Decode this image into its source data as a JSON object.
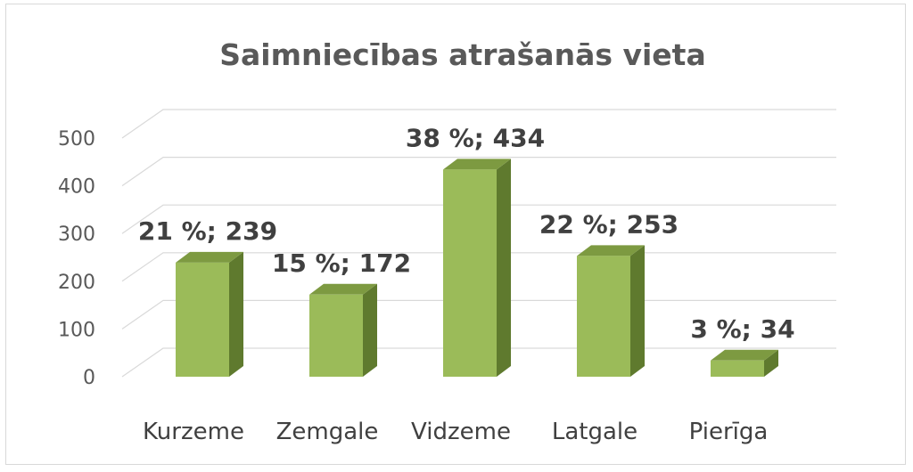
{
  "chart_data": {
    "type": "bar",
    "style": "3d-column",
    "title": "Saimniecības atrašanās vieta",
    "categories": [
      "Kurzeme",
      "Zemgale",
      "Vidzeme",
      "Latgale",
      "Pierīga"
    ],
    "values": [
      239,
      172,
      434,
      253,
      34
    ],
    "data_labels": [
      "21 %; 239",
      "15 %; 172",
      "38 %; 434",
      "22 %; 253",
      "3 %; 34"
    ],
    "yticks": [
      "0",
      "100",
      "200",
      "300",
      "400",
      "500"
    ],
    "ylim": [
      0,
      500
    ],
    "xlabel": "",
    "ylabel": "",
    "grid": true,
    "legend": "none",
    "colors": {
      "front": "#9bbb59",
      "side": "#5f7a2e",
      "top": "#7d9a41"
    }
  }
}
